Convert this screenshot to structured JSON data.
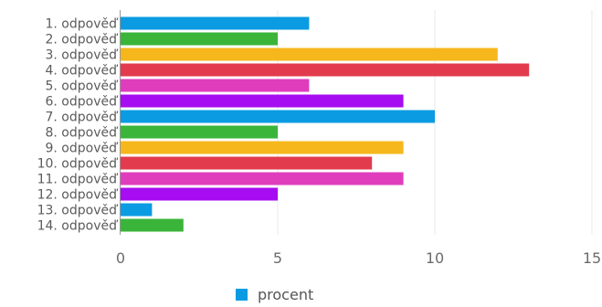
{
  "chart_data": {
    "type": "bar",
    "orientation": "horizontal",
    "categories": [
      "1. odpověď",
      "2. odpověď",
      "3. odpověď",
      "4. odpověď",
      "5. odpověď",
      "6. odpověď",
      "7. odpověď",
      "8. odpověď",
      "9. odpověď",
      "10. odpověď",
      "11. odpověď",
      "12. odpověď",
      "13. odpověď",
      "14. odpověď"
    ],
    "series": [
      {
        "name": "procent",
        "values": [
          6,
          5,
          12,
          13,
          6,
          9,
          10,
          5,
          9,
          8,
          9,
          5,
          1,
          2
        ]
      }
    ],
    "bar_colors": [
      "#0b9be3",
      "#3ab53a",
      "#f5b71c",
      "#e23b4d",
      "#e03dbd",
      "#a60df0",
      "#0b9be3",
      "#3ab53a",
      "#f5b71c",
      "#e23b4d",
      "#e03dbd",
      "#a60df0",
      "#0b9be3",
      "#3ab53a"
    ],
    "legend_color": "#0b9be3",
    "xlim": [
      0,
      15
    ],
    "xticks": [
      0,
      5,
      10,
      15
    ],
    "grid": true,
    "legend_position": "bottom"
  }
}
